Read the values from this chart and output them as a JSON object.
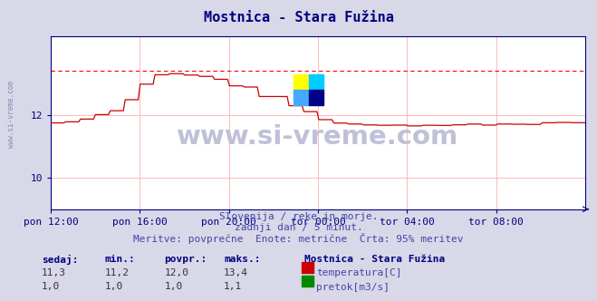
{
  "title": "Mostnica - Stara Fužina",
  "title_color": "#000080",
  "bg_color": "#d8d8e8",
  "plot_bg_color": "#ffffff",
  "grid_color": "#ffb0b0",
  "x_labels": [
    "pon 12:00",
    "pon 16:00",
    "pon 20:00",
    "tor 00:00",
    "tor 04:00",
    "tor 08:00"
  ],
  "y_min": 9.0,
  "y_max": 14.5,
  "y_ticks": [
    10,
    12
  ],
  "dashed_line_y": 13.4,
  "dashed_line_color": "#ff0000",
  "temp_line_color": "#cc0000",
  "flow_line_color": "#008800",
  "watermark_text": "www.si-vreme.com",
  "watermark_color": "#c0c0d8",
  "sub_text1": "Slovenija / reke in morje.",
  "sub_text2": "zadnji dan / 5 minut.",
  "sub_text3": "Meritve: povprečne  Enote: metrične  Črta: 95% meritev",
  "sub_text_color": "#4444aa",
  "footer_header_color": "#000080",
  "footer_labels": [
    "sedaj:",
    "min.:",
    "povpr.:",
    "maks.:"
  ],
  "footer_temp": [
    "11,3",
    "11,2",
    "12,0",
    "13,4"
  ],
  "footer_flow": [
    "1,0",
    "1,0",
    "1,0",
    "1,1"
  ],
  "footer_station": "Mostnica - Stara Fužina",
  "footer_temp_label": "temperatura[C]",
  "footer_flow_label": "pretok[m3/s]",
  "axis_color": "#000080",
  "tick_color": "#000080",
  "sidebar_text": "www.si-vreme.com",
  "sidebar_color": "#8888bb",
  "logo_colors": [
    "#ffff00",
    "#00ccff",
    "#44aaff",
    "#000088"
  ]
}
